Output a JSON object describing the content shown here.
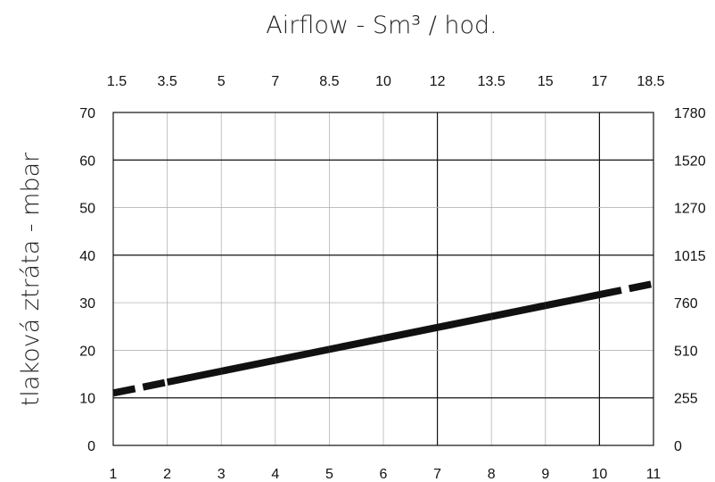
{
  "chart_data": {
    "type": "line",
    "title": "Airflow - Sm³ / hod.",
    "xlabel": "",
    "ylabel": "tlaková ztráta - mbar",
    "x": [
      1,
      2,
      3,
      4,
      5,
      6,
      7,
      8,
      9,
      10,
      11
    ],
    "xlim": [
      1,
      11
    ],
    "ylim": [
      0,
      70
    ],
    "x_ticks": [
      "1",
      "2",
      "3",
      "4",
      "5",
      "6",
      "7",
      "8",
      "9",
      "10",
      "11"
    ],
    "y_ticks": [
      "0",
      "10",
      "20",
      "30",
      "40",
      "50",
      "60",
      "70"
    ],
    "top_ticks": [
      "1.5",
      "3.5",
      "5",
      "7",
      "8.5",
      "10",
      "12",
      "13.5",
      "15",
      "17",
      "18.5"
    ],
    "right_ticks": [
      "0",
      "255",
      "510",
      "760",
      "1015",
      "1270",
      "1520",
      "1780"
    ],
    "grid": true,
    "series": [
      {
        "color": "#111111",
        "dashed_ranges": [
          [
            1,
            2
          ],
          [
            10,
            11
          ]
        ],
        "values": [
          11,
          13.3,
          15.6,
          17.9,
          20.2,
          22.5,
          24.8,
          27.1,
          29.4,
          31.7,
          34
        ]
      }
    ]
  }
}
